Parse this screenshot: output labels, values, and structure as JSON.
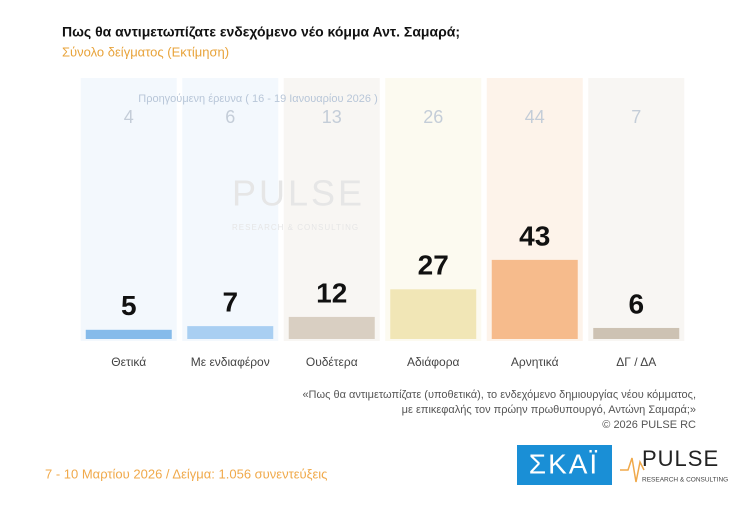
{
  "chart_data": {
    "type": "bar",
    "title": "Πως θα αντιμετωπίζατε ενδεχόμενο νέο κόμμα Αντ. Σαμαρά;",
    "subtitle": "Σύνολο δείγματος  (Εκτίμηση)",
    "previous_label": "Προηγούμενη έρευνα ( 16 - 19 Ιανουαρίου 2026 )",
    "categories": [
      "Θετικά",
      "Με ενδιαφέρον",
      "Ουδέτερα",
      "Αδιάφορα",
      "Αρνητικά",
      "ΔΓ / ΔΑ"
    ],
    "values": [
      5,
      7,
      12,
      27,
      43,
      6
    ],
    "previous_values": [
      4,
      6,
      13,
      26,
      44,
      7
    ],
    "colors": [
      "#86bbea",
      "#a9cff2",
      "#d9cfc2",
      "#f1e6b6",
      "#f6bb8c",
      "#cdc2b3"
    ],
    "column_colors": [
      "#f3f8fd",
      "#f3f8fd",
      "#f8f6f3",
      "#fcfaf0",
      "#fdf3ea",
      "#f8f6f3"
    ],
    "watermark": "PULSE",
    "watermark_sub": "RESEARCH & CONSULTING",
    "note_lines": [
      "«Πως θα αντιμετωπίζατε (υποθετικά), το ενδεχόμενο δημιουργίας νέου κόμματος,",
      "με επικεφαλής τον πρώην πρωθυπουργό, Αντώνη Σαμαρά;»",
      "©  2026  PULSE RC"
    ],
    "footer": "7 - 10  Μαρτίου 2026  /  Δείγμα:  1.056 συνεντεύξεις",
    "logo_skai": "ΣΚΑΪ",
    "logo_pulse": "PULSE",
    "logo_pulse_sub": "RESEARCH & CONSULTING"
  }
}
